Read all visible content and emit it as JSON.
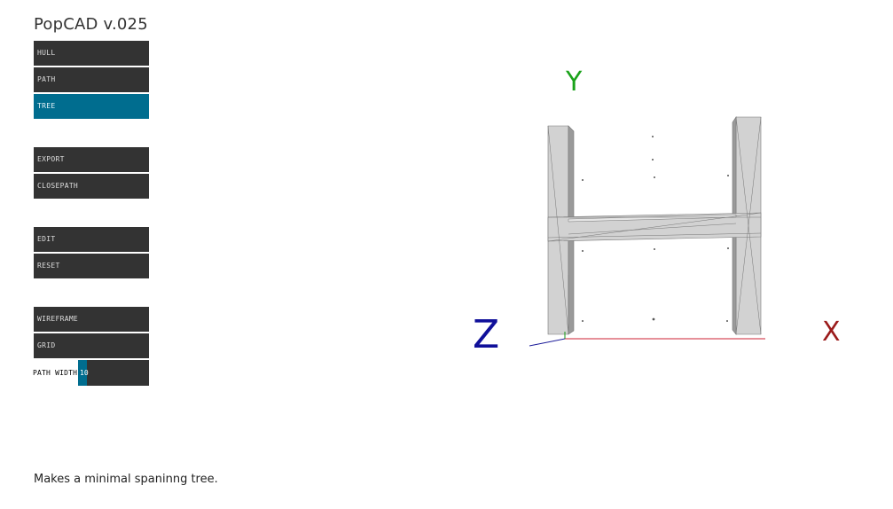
{
  "app": {
    "title": "PopCAD v.025"
  },
  "buttons": {
    "hull": "HULL",
    "path": "PATH",
    "tree": "TREE",
    "export": "EXPORT",
    "closepath": "CLOSEPATH",
    "edit": "EDIT",
    "reset": "RESET",
    "wireframe": "WIREFRAME",
    "grid": "GRID"
  },
  "active_button": "tree",
  "path_width": {
    "label": "PATH WIDTH",
    "value": "10",
    "fraction": 0.12
  },
  "status": {
    "message": "Makes a minimal spaninng tree."
  },
  "viewport": {
    "axes": {
      "x": "X",
      "y": "Y",
      "z": "Z"
    },
    "colors": {
      "x_axis": "#cc2233",
      "y_axis": "#119911",
      "z_axis": "#1a1a99",
      "x_label": "#9b1b1b",
      "y_label": "#1aa21a",
      "z_label": "#10109a",
      "mesh_fill": "#d2d2d2",
      "mesh_edge": "#777777"
    }
  },
  "colors": {
    "button_bg": "#333333",
    "button_active": "#006d8f",
    "button_text": "#dddddd"
  }
}
